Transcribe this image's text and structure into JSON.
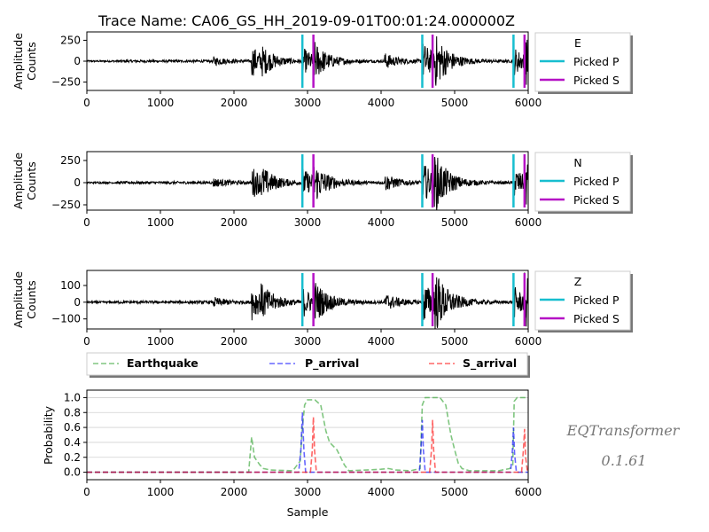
{
  "chart_data": {
    "type": "line",
    "title": "Trace Name: CA06_GS_HH_2019-09-01T00:01:24.000000Z",
    "xlim": [
      0,
      6000
    ],
    "xticks": [
      "0",
      "1000",
      "2000",
      "3000",
      "4000",
      "5000",
      "6000"
    ],
    "picked_p_samples": [
      2930,
      4560,
      5800
    ],
    "picked_s_samples": [
      3080,
      4700,
      5950
    ],
    "waveform_bursts": [
      {
        "sample": 1720,
        "amp_scale": 0.15
      },
      {
        "sample": 2240,
        "amp_scale": 0.6
      },
      {
        "sample": 2370,
        "amp_scale": 0.35
      },
      {
        "sample": 2930,
        "amp_scale": 0.5
      },
      {
        "sample": 3080,
        "amp_scale": 0.6
      },
      {
        "sample": 4050,
        "amp_scale": 0.3
      },
      {
        "sample": 4560,
        "amp_scale": 0.75
      },
      {
        "sample": 4700,
        "amp_scale": 1.0
      },
      {
        "sample": 5800,
        "amp_scale": 0.55
      },
      {
        "sample": 5950,
        "amp_scale": 0.8
      }
    ],
    "channels": [
      {
        "legend_title": "E",
        "ylabel": [
          "Amplitude",
          "Counts"
        ],
        "ylim": [
          -350,
          350
        ],
        "yticks": [
          {
            "value": 250,
            "label": "250"
          },
          {
            "value": 0,
            "label": "0"
          },
          {
            "value": -250,
            "label": "−250"
          }
        ],
        "peak_amplitude": 300
      },
      {
        "legend_title": "N",
        "ylabel": [
          "Amplitude",
          "Counts"
        ],
        "ylim": [
          -310,
          350
        ],
        "yticks": [
          {
            "value": 250,
            "label": "250"
          },
          {
            "value": 0,
            "label": "0"
          },
          {
            "value": -250,
            "label": "−250"
          }
        ],
        "peak_amplitude": 300
      },
      {
        "legend_title": "Z",
        "ylabel": [
          "Amplitude",
          "Counts"
        ],
        "ylim": [
          -160,
          190
        ],
        "yticks": [
          {
            "value": 100,
            "label": "100"
          },
          {
            "value": 0,
            "label": "0"
          },
          {
            "value": -100,
            "label": "−100"
          }
        ],
        "peak_amplitude": 170
      }
    ],
    "channel_legend": [
      {
        "name": "Picked P",
        "color": "#17becf"
      },
      {
        "name": "Picked S",
        "color": "#b512c5"
      }
    ],
    "probability": {
      "ylabel": "Probability",
      "xlabel": "Sample",
      "ylim": [
        -0.1,
        1.1
      ],
      "yticks": [
        "0.0",
        "0.2",
        "0.4",
        "0.6",
        "0.8",
        "1.0"
      ],
      "grid": true,
      "legend_placement": "top, outside",
      "series": [
        {
          "name": "Earthquake",
          "color": "#2ca02c",
          "points": [
            [
              0,
              0
            ],
            [
              2200,
              0
            ],
            [
              2240,
              0.47
            ],
            [
              2280,
              0.2
            ],
            [
              2350,
              0.1
            ],
            [
              2400,
              0.05
            ],
            [
              2500,
              0.03
            ],
            [
              2800,
              0.02
            ],
            [
              2900,
              0.15
            ],
            [
              2930,
              0.6
            ],
            [
              2960,
              0.9
            ],
            [
              3000,
              0.97
            ],
            [
              3100,
              0.97
            ],
            [
              3180,
              0.9
            ],
            [
              3250,
              0.55
            ],
            [
              3300,
              0.4
            ],
            [
              3400,
              0.3
            ],
            [
              3500,
              0.1
            ],
            [
              3560,
              0.02
            ],
            [
              3800,
              0.03
            ],
            [
              4000,
              0.04
            ],
            [
              4100,
              0.05
            ],
            [
              4200,
              0.03
            ],
            [
              4400,
              0.02
            ],
            [
              4530,
              0.05
            ],
            [
              4560,
              0.9
            ],
            [
              4600,
              1.0
            ],
            [
              4700,
              1.0
            ],
            [
              4800,
              1.0
            ],
            [
              4880,
              0.9
            ],
            [
              4950,
              0.5
            ],
            [
              5000,
              0.3
            ],
            [
              5050,
              0.12
            ],
            [
              5100,
              0.05
            ],
            [
              5200,
              0.02
            ],
            [
              5600,
              0.02
            ],
            [
              5750,
              0.05
            ],
            [
              5790,
              0.1
            ],
            [
              5810,
              0.95
            ],
            [
              5850,
              1.0
            ],
            [
              6000,
              1.0
            ]
          ]
        },
        {
          "name": "P_arrival",
          "color": "#0000ff",
          "points": [
            [
              0,
              0
            ],
            [
              2880,
              0
            ],
            [
              2910,
              0.3
            ],
            [
              2930,
              0.8
            ],
            [
              2950,
              0.3
            ],
            [
              2975,
              0
            ],
            [
              4520,
              0
            ],
            [
              4545,
              0.35
            ],
            [
              4560,
              0.7
            ],
            [
              4575,
              0.3
            ],
            [
              4600,
              0
            ],
            [
              5760,
              0
            ],
            [
              5785,
              0.3
            ],
            [
              5800,
              0.6
            ],
            [
              5815,
              0.25
            ],
            [
              5840,
              0
            ],
            [
              6000,
              0
            ]
          ]
        },
        {
          "name": "S_arrival",
          "color": "#ff0000",
          "points": [
            [
              0,
              0
            ],
            [
              3040,
              0
            ],
            [
              3065,
              0.3
            ],
            [
              3080,
              0.74
            ],
            [
              3095,
              0.3
            ],
            [
              3120,
              0
            ],
            [
              4660,
              0
            ],
            [
              4685,
              0.3
            ],
            [
              4700,
              0.7
            ],
            [
              4715,
              0.3
            ],
            [
              4740,
              0
            ],
            [
              5910,
              0
            ],
            [
              5935,
              0.3
            ],
            [
              5950,
              0.58
            ],
            [
              5965,
              0.2
            ],
            [
              5990,
              0
            ],
            [
              6000,
              0
            ]
          ]
        }
      ]
    }
  },
  "branding": {
    "name": "EQTransformer",
    "version": "0.1.61"
  }
}
